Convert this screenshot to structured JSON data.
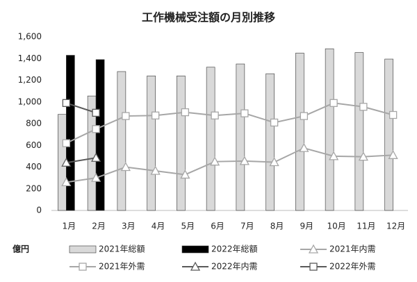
{
  "chart_data": {
    "type": "combo",
    "title": "工作機械受注額の月別推移",
    "y_label": "億円",
    "categories": [
      "1月",
      "2月",
      "3月",
      "4月",
      "5月",
      "6月",
      "7月",
      "8月",
      "9月",
      "10月",
      "11月",
      "12月"
    ],
    "ylim": [
      0,
      1600
    ],
    "yticks": [
      0,
      200,
      400,
      600,
      800,
      {
        "value": 1000,
        "label": "1,000"
      },
      {
        "value": 1200,
        "label": "1,200"
      },
      {
        "value": 1400,
        "label": "1,400"
      },
      {
        "value": 1600,
        "label": "1,600"
      }
    ],
    "grid": false,
    "legend": "bottom",
    "series": [
      {
        "name": "2021年総額",
        "type": "bar",
        "color": "#d9d9d9",
        "values": [
          885,
          1055,
          1280,
          1240,
          1240,
          1320,
          1350,
          1260,
          1450,
          1490,
          1455,
          1395
        ]
      },
      {
        "name": "2022年総額",
        "type": "bar",
        "color": "#000000",
        "values": [
          1430,
          1390,
          null,
          null,
          null,
          null,
          null,
          null,
          null,
          null,
          null,
          null
        ]
      },
      {
        "name": "2021年内需",
        "type": "line",
        "marker": "triangle",
        "color": "#a6a6a6",
        "values": [
          260,
          300,
          400,
          365,
          330,
          450,
          455,
          445,
          575,
          500,
          495,
          510
        ]
      },
      {
        "name": "2021年外需",
        "type": "line",
        "marker": "square",
        "color": "#a6a6a6",
        "values": [
          620,
          750,
          870,
          875,
          905,
          875,
          895,
          810,
          870,
          990,
          955,
          880
        ]
      },
      {
        "name": "2022年内需",
        "type": "line",
        "marker": "triangle",
        "color": "#595959",
        "values": [
          440,
          485,
          null,
          null,
          null,
          null,
          null,
          null,
          null,
          null,
          null,
          null
        ]
      },
      {
        "name": "2022年外需",
        "type": "line",
        "marker": "square",
        "color": "#595959",
        "values": [
          990,
          900,
          null,
          null,
          null,
          null,
          null,
          null,
          null,
          null,
          null,
          null
        ]
      }
    ]
  }
}
